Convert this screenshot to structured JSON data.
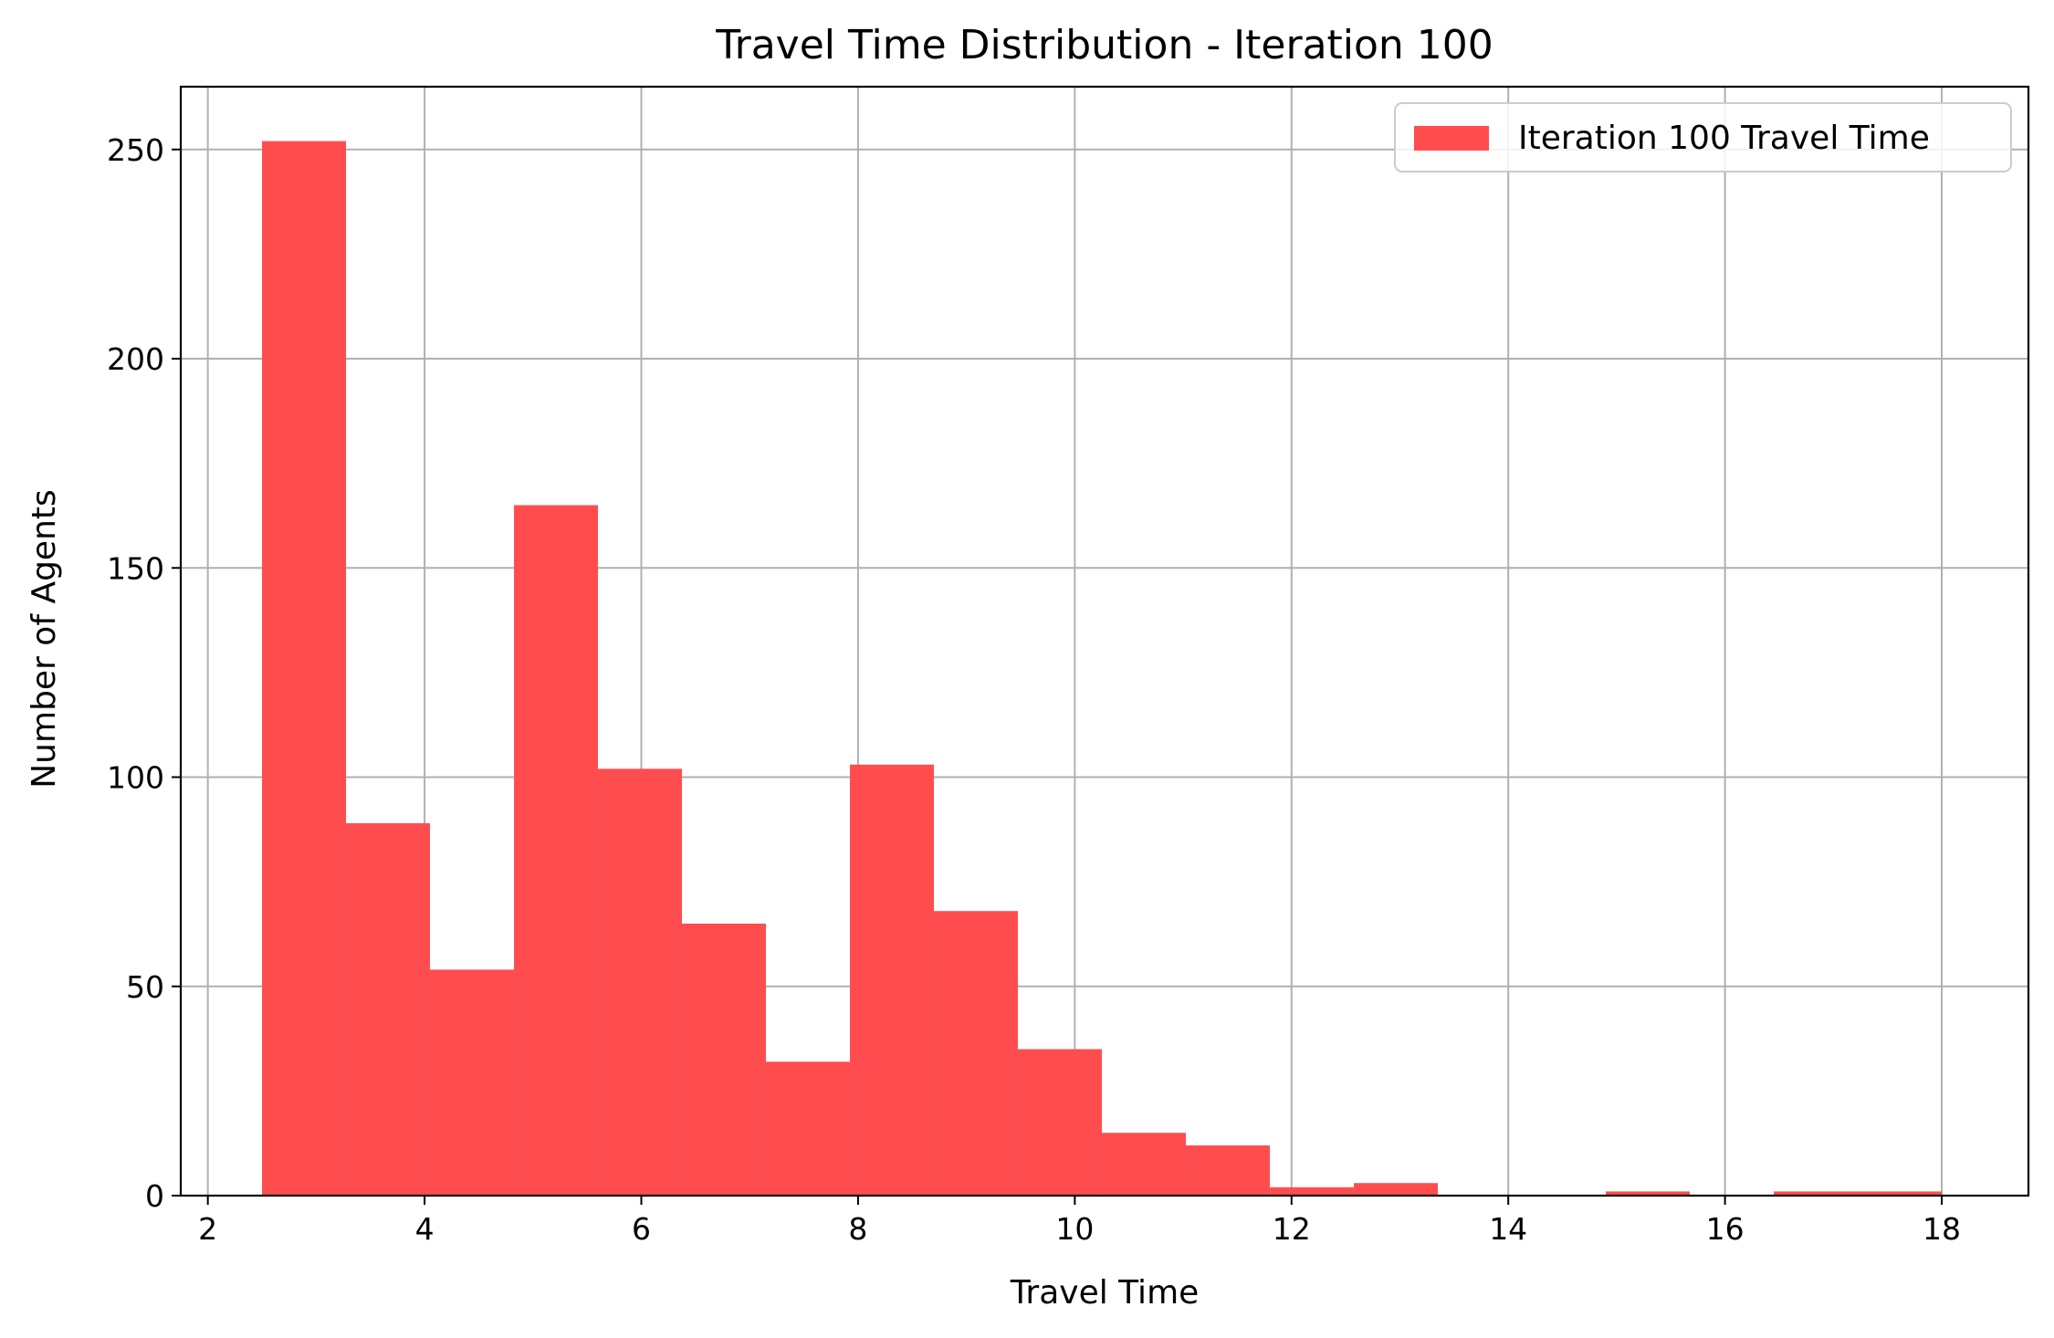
{
  "chart_data": {
    "type": "bar",
    "title": "Travel Time Distribution - Iteration 100",
    "xlabel": "Travel Time",
    "ylabel": "Number of Agents",
    "xlim": [
      1.75,
      18.8
    ],
    "ylim": [
      0,
      265
    ],
    "xticks": [
      2,
      4,
      6,
      8,
      10,
      12,
      14,
      16,
      18
    ],
    "yticks": [
      0,
      50,
      100,
      150,
      200,
      250
    ],
    "grid": true,
    "legend_position": "top-right",
    "bar_color": "#ff4d4f",
    "series": [
      {
        "name": "Iteration 100 Travel Time",
        "bins": [
          {
            "x0": 2.5,
            "x1": 3.275,
            "count": 252
          },
          {
            "x0": 3.275,
            "x1": 4.05,
            "count": 89
          },
          {
            "x0": 4.05,
            "x1": 4.825,
            "count": 54
          },
          {
            "x0": 4.825,
            "x1": 5.6,
            "count": 165
          },
          {
            "x0": 5.6,
            "x1": 6.375,
            "count": 102
          },
          {
            "x0": 6.375,
            "x1": 7.15,
            "count": 65
          },
          {
            "x0": 7.15,
            "x1": 7.925,
            "count": 32
          },
          {
            "x0": 7.925,
            "x1": 8.7,
            "count": 103
          },
          {
            "x0": 8.7,
            "x1": 9.475,
            "count": 68
          },
          {
            "x0": 9.475,
            "x1": 10.25,
            "count": 35
          },
          {
            "x0": 10.25,
            "x1": 11.025,
            "count": 15
          },
          {
            "x0": 11.025,
            "x1": 11.8,
            "count": 12
          },
          {
            "x0": 11.8,
            "x1": 12.575,
            "count": 2
          },
          {
            "x0": 12.575,
            "x1": 13.35,
            "count": 3
          },
          {
            "x0": 13.35,
            "x1": 14.125,
            "count": 0
          },
          {
            "x0": 14.125,
            "x1": 14.9,
            "count": 0
          },
          {
            "x0": 14.9,
            "x1": 15.675,
            "count": 1
          },
          {
            "x0": 15.675,
            "x1": 16.45,
            "count": 0
          },
          {
            "x0": 16.45,
            "x1": 17.225,
            "count": 1
          },
          {
            "x0": 17.225,
            "x1": 18.0,
            "count": 1
          }
        ]
      }
    ]
  }
}
